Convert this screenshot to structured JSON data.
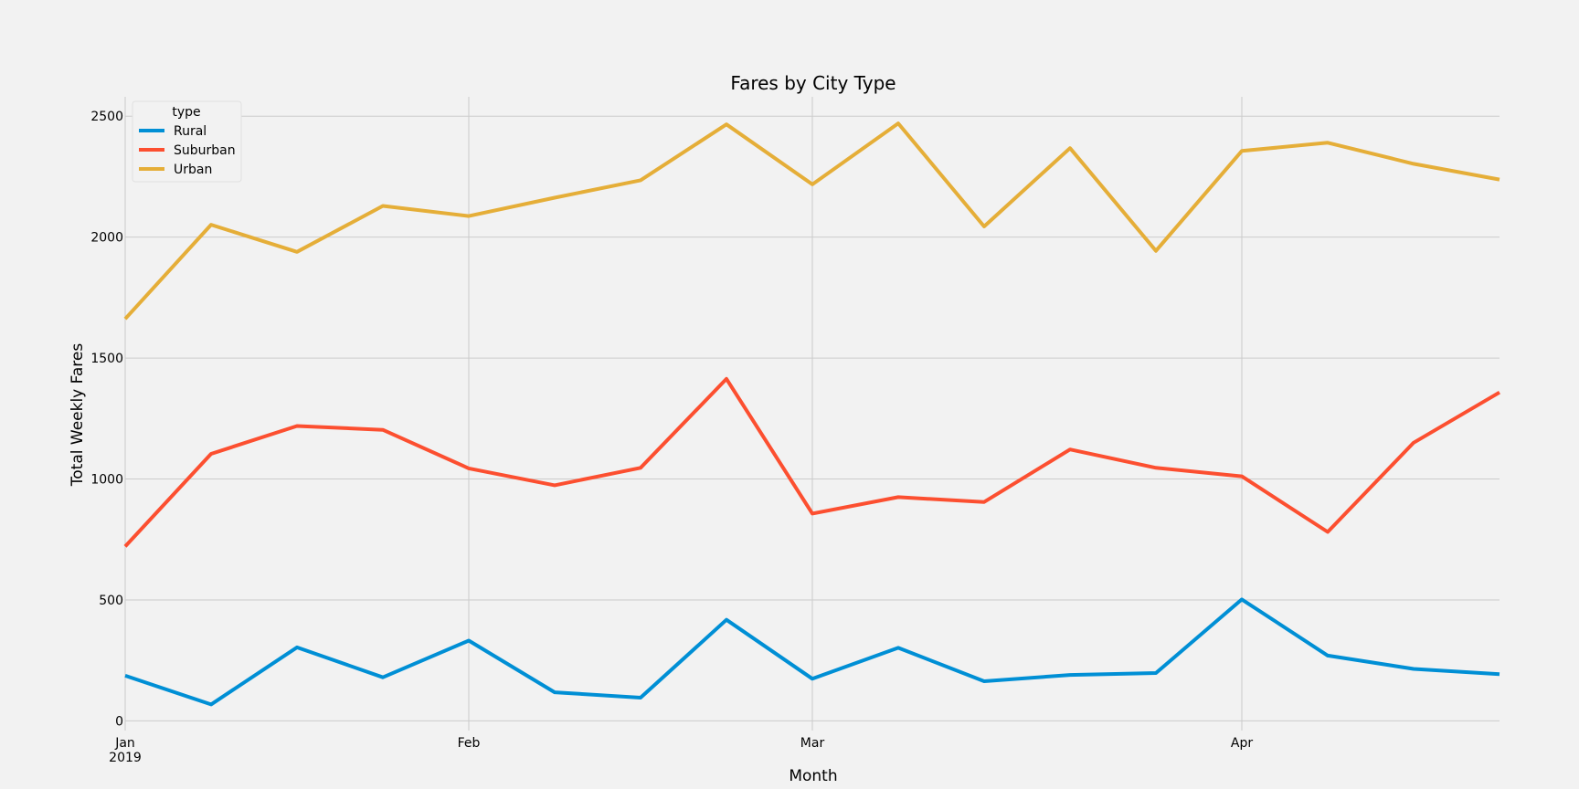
{
  "chart_data": {
    "type": "line",
    "title": "Fares by City Type",
    "xlabel": "Month",
    "ylabel": "Total Weekly Fares",
    "x": [
      "2019-01-06",
      "2019-01-13",
      "2019-01-20",
      "2019-01-27",
      "2019-02-03",
      "2019-02-10",
      "2019-02-17",
      "2019-02-24",
      "2019-03-03",
      "2019-03-10",
      "2019-03-17",
      "2019-03-24",
      "2019-03-31",
      "2019-04-07",
      "2019-04-14",
      "2019-04-21",
      "2019-04-28"
    ],
    "x_ticks": [
      {
        "date": "2019-01-06",
        "label": "Jan",
        "sublabel": "2019"
      },
      {
        "date": "2019-02-03",
        "label": "Feb",
        "sublabel": ""
      },
      {
        "date": "2019-03-03",
        "label": "Mar",
        "sublabel": ""
      },
      {
        "date": "2019-04-07",
        "label": "Apr",
        "sublabel": ""
      }
    ],
    "xlim": [
      "2019-01-06",
      "2019-04-28"
    ],
    "y_ticks": [
      0,
      500,
      1000,
      1500,
      2000,
      2500
    ],
    "ylim": [
      -40,
      2580
    ],
    "grid": true,
    "legend": {
      "title": "type",
      "position": "top-left"
    },
    "series": [
      {
        "name": "Rural",
        "color": "#008fd5",
        "values": [
          187,
          68,
          304,
          180,
          332,
          118,
          96,
          418,
          174,
          302,
          164,
          190,
          198,
          502,
          270,
          215,
          193
        ]
      },
      {
        "name": "Suburban",
        "color": "#fc4f30",
        "values": [
          721,
          1104,
          1219,
          1203,
          1044,
          974,
          1046,
          1414,
          857,
          925,
          905,
          1122,
          1046,
          1011,
          781,
          1150,
          1358
        ]
      },
      {
        "name": "Urban",
        "color": "#e5ae38",
        "values": [
          1662,
          2051,
          1939,
          2129,
          2087,
          2163,
          2235,
          2466,
          2218,
          2470,
          2044,
          2368,
          1943,
          2356,
          2390,
          2303,
          2238
        ]
      }
    ]
  }
}
